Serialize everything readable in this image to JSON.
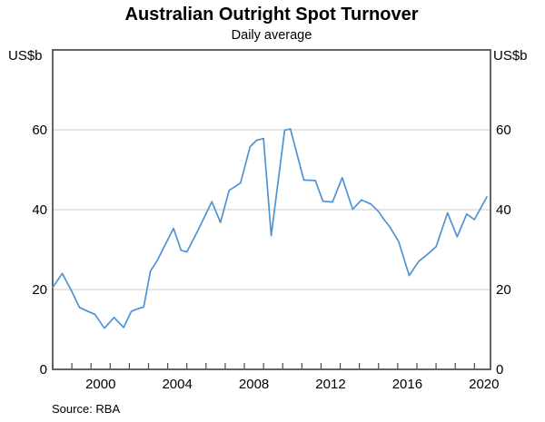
{
  "header": {
    "title": "Australian Outright Spot Turnover",
    "subtitle": "Daily average"
  },
  "axis_units": {
    "left": "US$b",
    "right": "US$b"
  },
  "footer": {
    "source": "Source:   RBA"
  },
  "chart_data": {
    "type": "line",
    "title": "Australian Outright Spot Turnover",
    "subtitle": "Daily average",
    "ylabel_left": "US$b",
    "ylabel_right": "US$b",
    "ylim": [
      0,
      80
    ],
    "yticks": [
      0,
      20,
      40,
      60
    ],
    "gridlines": [
      20,
      40,
      60
    ],
    "grid_color": "#c9c9c9",
    "axis_color": "#4a4a4a",
    "xlim": [
      1998,
      2020.84
    ],
    "minor_tick_years_start": 1998,
    "minor_tick_years_end": 2020,
    "xtick_labeled_years": [
      2000,
      2004,
      2008,
      2012,
      2016,
      2020
    ],
    "legend": "none",
    "source": "RBA",
    "series": [
      {
        "name": "Australian outright spot turnover (daily average, US$b)",
        "color": "#4e93d4",
        "points": [
          [
            1998.0,
            20.5
          ],
          [
            1998.5,
            24.0
          ],
          [
            1999.0,
            19.5
          ],
          [
            1999.4,
            15.5
          ],
          [
            1999.85,
            14.5
          ],
          [
            2000.2,
            13.8
          ],
          [
            2000.7,
            10.3
          ],
          [
            2001.2,
            13.0
          ],
          [
            2001.7,
            10.5
          ],
          [
            2002.1,
            14.5
          ],
          [
            2002.5,
            15.3
          ],
          [
            2002.75,
            15.6
          ],
          [
            2003.1,
            24.6
          ],
          [
            2003.45,
            27.2
          ],
          [
            2004.3,
            35.3
          ],
          [
            2004.7,
            29.8
          ],
          [
            2005.0,
            29.4
          ],
          [
            2005.55,
            34.5
          ],
          [
            2006.3,
            42.0
          ],
          [
            2006.75,
            36.8
          ],
          [
            2007.2,
            44.8
          ],
          [
            2007.65,
            46.2
          ],
          [
            2007.8,
            46.7
          ],
          [
            2008.3,
            55.8
          ],
          [
            2008.65,
            57.4
          ],
          [
            2009.0,
            57.8
          ],
          [
            2009.4,
            33.5
          ],
          [
            2010.1,
            59.9
          ],
          [
            2010.4,
            60.2
          ],
          [
            2011.1,
            47.4
          ],
          [
            2011.7,
            47.3
          ],
          [
            2012.1,
            42.1
          ],
          [
            2012.6,
            41.9
          ],
          [
            2013.1,
            48.0
          ],
          [
            2013.65,
            40.1
          ],
          [
            2014.1,
            42.4
          ],
          [
            2014.6,
            41.4
          ],
          [
            2015.0,
            39.5
          ],
          [
            2015.3,
            37.4
          ],
          [
            2015.6,
            35.6
          ],
          [
            2016.05,
            32.0
          ],
          [
            2016.6,
            23.5
          ],
          [
            2017.1,
            27.1
          ],
          [
            2017.5,
            28.6
          ],
          [
            2018.0,
            30.7
          ],
          [
            2018.6,
            39.2
          ],
          [
            2019.1,
            33.2
          ],
          [
            2019.6,
            38.9
          ],
          [
            2020.0,
            37.5
          ],
          [
            2020.65,
            43.2
          ]
        ]
      }
    ]
  }
}
